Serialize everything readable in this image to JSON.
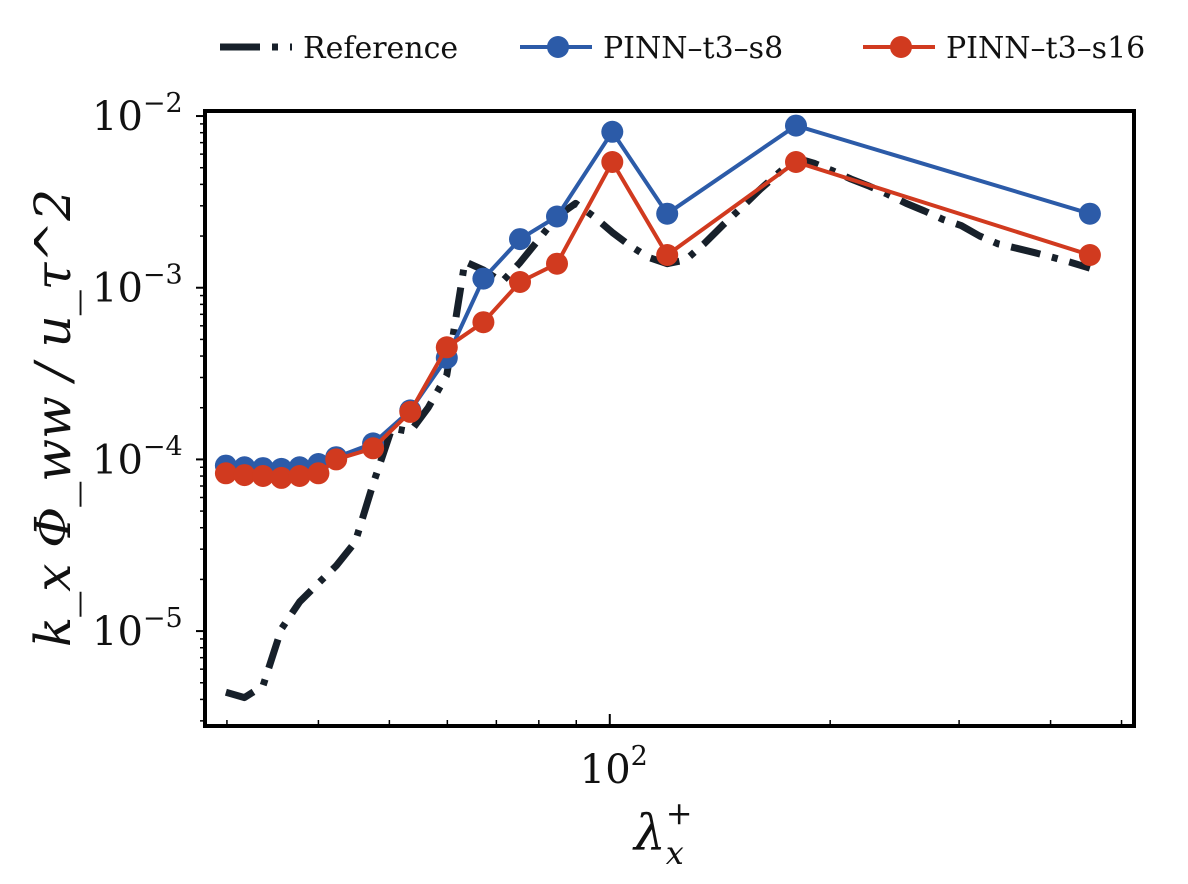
{
  "chart_data": {
    "type": "line",
    "xscale": "log",
    "yscale": "log",
    "xlim": [
      28,
      520
    ],
    "ylim": [
      2.8e-06,
      0.0107
    ],
    "grid": false,
    "legend_position": "top-center",
    "xlabel": "λ",
    "xlabel_sub": "x",
    "xlabel_sup": "+",
    "ylabel": "k_x Φ_ww / u_τ^2",
    "xticks_major": [
      {
        "value": 100,
        "label": "10",
        "exp": "2"
      }
    ],
    "xticks_minor": [
      30,
      40,
      50,
      60,
      70,
      80,
      90,
      200,
      300,
      400,
      500
    ],
    "yticks_major": [
      {
        "value": 0.01,
        "label": "10",
        "exp": "−2"
      },
      {
        "value": 0.001,
        "label": "10",
        "exp": "−3"
      },
      {
        "value": 0.0001,
        "label": "10",
        "exp": "−4"
      },
      {
        "value": 1e-05,
        "label": "10",
        "exp": "−5"
      }
    ],
    "series": [
      {
        "name": "Reference",
        "color": "#17202a",
        "style": "dashdot",
        "markers": false,
        "x": [
          29.9,
          31.7,
          33.6,
          35.6,
          37.7,
          40.0,
          42.3,
          44.9,
          47.5,
          50.4,
          53.4,
          56.5,
          59.9,
          63.4,
          67.2,
          71.2,
          75.4,
          79.9,
          84.7,
          89.8,
          95.1,
          100.8,
          106.7,
          113.1,
          119.8,
          126.9,
          134.5,
          142.5,
          151.0,
          160.0,
          169.5,
          179.6,
          190.3,
          201.6,
          213.5,
          226.3,
          239.7,
          254.0,
          269.1,
          285.1,
          302.0,
          320.0,
          339.1,
          359.2,
          380.6,
          403.3,
          427.3,
          452.7
        ],
        "y": [
          4.4e-06,
          4.1e-06,
          4.8e-06,
          1.03e-05,
          1.48e-05,
          1.9e-05,
          2.4e-05,
          3.3e-05,
          7.2e-05,
          0.000152,
          0.000145,
          0.0002,
          0.00031,
          0.00142,
          0.00127,
          0.00108,
          0.0014,
          0.0019,
          0.0026,
          0.0031,
          0.0026,
          0.0021,
          0.00175,
          0.0015,
          0.00138,
          0.00145,
          0.0018,
          0.0023,
          0.0029,
          0.0037,
          0.0046,
          0.0057,
          0.0053,
          0.0048,
          0.0043,
          0.0039,
          0.0035,
          0.0031,
          0.0028,
          0.0025,
          0.0023,
          0.002,
          0.0018,
          0.0017,
          0.0016,
          0.0015,
          0.0014,
          0.0013
        ]
      },
      {
        "name": "PINN–t3–s8",
        "color": "#2c5ba8",
        "style": "solid",
        "markers": true,
        "x": [
          29.9,
          31.7,
          33.6,
          35.6,
          37.7,
          40.0,
          42.3,
          47.5,
          53.4,
          59.9,
          67.2,
          75.4,
          84.7,
          100.8,
          119.8,
          179.6,
          452.7
        ],
        "y": [
          9.2e-05,
          9e-05,
          8.9e-05,
          8.8e-05,
          9e-05,
          9.4e-05,
          0.000103,
          0.000124,
          0.000193,
          0.00039,
          0.00113,
          0.00192,
          0.0026,
          0.0081,
          0.0027,
          0.0088,
          0.0027
        ]
      },
      {
        "name": "PINN–t3–s16",
        "color": "#d13a1f",
        "style": "solid",
        "markers": true,
        "x": [
          29.9,
          31.7,
          33.6,
          35.6,
          37.7,
          40.0,
          42.3,
          47.5,
          53.4,
          59.9,
          67.2,
          75.4,
          84.7,
          100.8,
          119.8,
          179.6,
          452.7
        ],
        "y": [
          8.3e-05,
          8.1e-05,
          8e-05,
          7.8e-05,
          8e-05,
          8.3e-05,
          0.0001,
          0.000116,
          0.000189,
          0.00045,
          0.00063,
          0.00108,
          0.00138,
          0.0054,
          0.00155,
          0.0054,
          0.00155
        ]
      }
    ]
  }
}
